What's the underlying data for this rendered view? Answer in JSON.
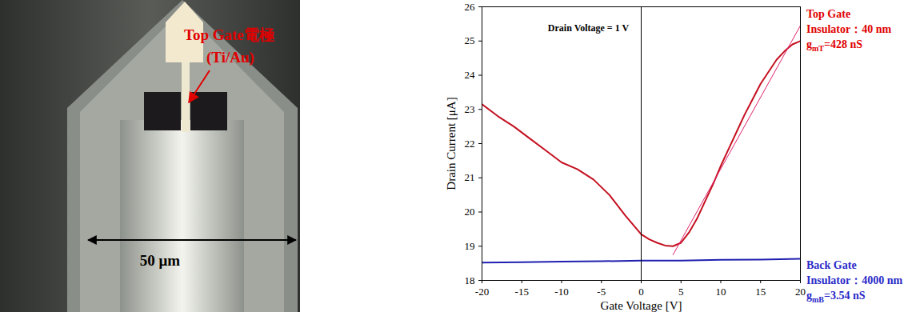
{
  "photo": {
    "label_lines": [
      "Top Gate電極",
      "(Ti/Au)"
    ],
    "label_color": "#e00000",
    "scale_bar": "50 μm"
  },
  "chart_data": {
    "type": "line",
    "x_label": "Gate Voltage [V]",
    "y_label": "Drain Current [μA]",
    "xlim": [
      -20,
      20
    ],
    "xticks": [
      -20,
      -15,
      -10,
      -5,
      0,
      5,
      10,
      15,
      20
    ],
    "ylim": [
      18,
      26
    ],
    "yticks": [
      18,
      19,
      20,
      21,
      22,
      23,
      24,
      25,
      26
    ],
    "grid": false,
    "reference_line_x": 0,
    "annotations": [
      "Drain Voltage = 1 V"
    ],
    "side_notes": [
      {
        "color": "#e00000",
        "lines": [
          {
            "text": "Top Gate"
          },
          {
            "text": "Insulator：40 nm"
          },
          {
            "text": "g",
            "sub": "mT",
            "rest": "=428 nS"
          }
        ]
      },
      {
        "color": "#2a2ac8",
        "lines": [
          {
            "text": "Back Gate"
          },
          {
            "text": "Insulator：4000 nm"
          },
          {
            "text": "g",
            "sub": "mB",
            "rest": "=3.54 nS"
          }
        ]
      }
    ],
    "series": [
      {
        "name": "Top Gate",
        "color": "#c41020",
        "line_style": "solid",
        "x": [
          -20,
          -18,
          -16,
          -14,
          -12,
          -10,
          -8,
          -6,
          -4,
          -2,
          0,
          1,
          2,
          3,
          4,
          5,
          6,
          7,
          8,
          9,
          10,
          11,
          12,
          13,
          14,
          15,
          16,
          17,
          18,
          19,
          20
        ],
        "values": [
          23.15,
          22.8,
          22.5,
          22.15,
          21.8,
          21.45,
          21.25,
          20.95,
          20.5,
          19.9,
          19.35,
          19.2,
          19.1,
          19.02,
          19.0,
          19.1,
          19.4,
          19.8,
          20.3,
          20.8,
          21.35,
          21.85,
          22.35,
          22.85,
          23.3,
          23.75,
          24.1,
          24.45,
          24.7,
          24.9,
          25.0
        ]
      },
      {
        "color": "#e0206a",
        "line_style": "thin",
        "x": [
          4,
          20
        ],
        "values": [
          18.75,
          25.45
        ]
      },
      {
        "name": "Back Gate",
        "color": "#2020b0",
        "line_style": "solid",
        "x": [
          -20,
          -15,
          -10,
          -5,
          0,
          5,
          10,
          15,
          20
        ],
        "values": [
          18.52,
          18.53,
          18.55,
          18.56,
          18.58,
          18.58,
          18.6,
          18.61,
          18.63
        ]
      }
    ]
  }
}
